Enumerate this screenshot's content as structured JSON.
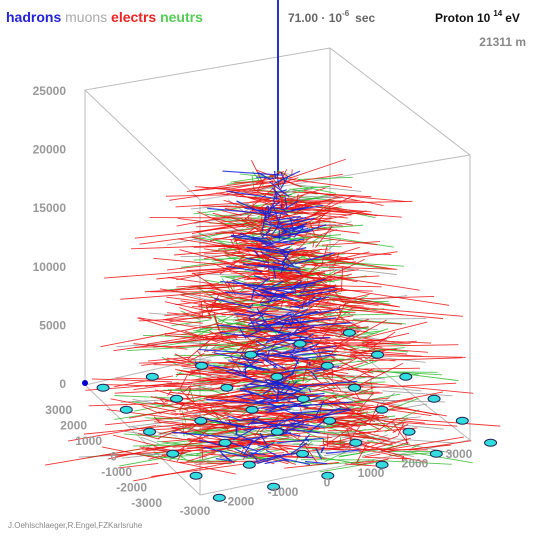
{
  "legend": [
    "hadrons",
    "muons",
    "electrs",
    "neutrs"
  ],
  "time": {
    "text": "71.00 · 10",
    "exponent": "-6",
    "unit": "sec"
  },
  "primary": {
    "text": "Proton 10",
    "exponent": "14",
    "unit": "eV"
  },
  "altitude": "21311 m",
  "z_axis_ticks": [
    "25000",
    "20000",
    "15000",
    "10000",
    "5000",
    "0"
  ],
  "y_axis_ticks": [
    "3000",
    "2000",
    "1000",
    "0",
    "-1000",
    "-2000",
    "-3000"
  ],
  "x_axis_ticks": [
    "-3000",
    "-2000",
    "-1000",
    "0",
    "1000",
    "2000",
    "3000"
  ],
  "credit": "J.Oehlschlaeger,R.Engel,FZKarlsruhe"
}
